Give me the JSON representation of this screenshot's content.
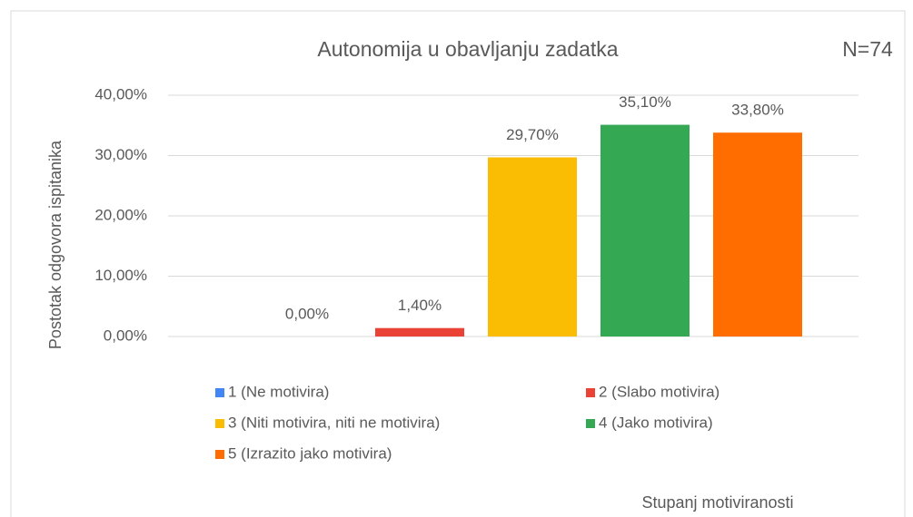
{
  "chart_data": {
    "type": "bar",
    "title": "Autonomija u obavljanju zadatka",
    "annotation": "N=74",
    "y_label": "Postotak odgovora ispitanika",
    "x_label": "Stupanj motiviranosti",
    "categories": [
      "1 (Ne motivira)",
      "2 (Slabo motivira)",
      "3 (Niti motivira, niti ne motivira)",
      "4 (Jako motivira)",
      "5 (Izrazito jako motivira)"
    ],
    "values": [
      0,
      1.4,
      29.7,
      35.1,
      33.8
    ],
    "value_labels": [
      "0,00%",
      "1,40%",
      "29,70%",
      "35,10%",
      "33,80%"
    ],
    "colors": [
      "#4285f4",
      "#ea4335",
      "#fbbc04",
      "#34a853",
      "#ff6d01"
    ],
    "ylim": [
      0,
      40
    ],
    "yticks": [
      {
        "value": 0,
        "label": "0,00%"
      },
      {
        "value": 10,
        "label": "10,00%"
      },
      {
        "value": 20,
        "label": "20,00%"
      },
      {
        "value": 30,
        "label": "30,00%"
      },
      {
        "value": 40,
        "label": "40,00%"
      }
    ],
    "grid": true
  }
}
